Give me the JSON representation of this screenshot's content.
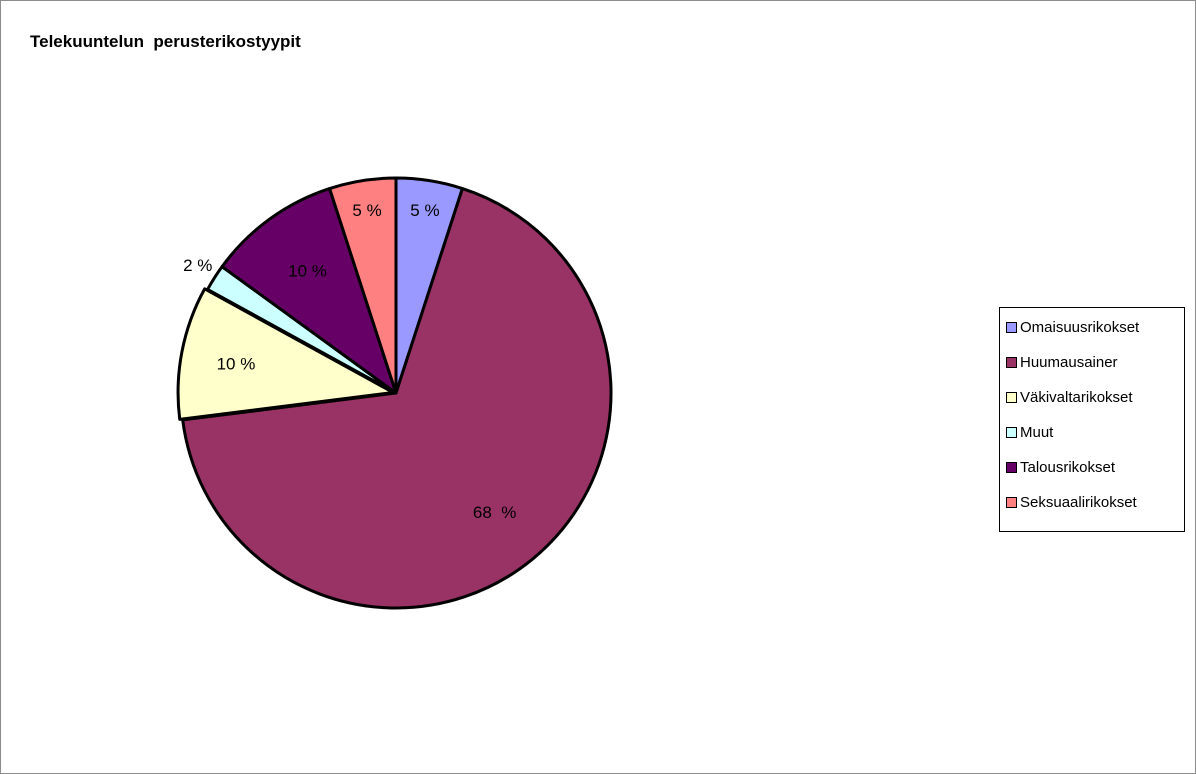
{
  "chart_data": {
    "type": "pie",
    "title": "Telekuuntelun  perusterikostyypit",
    "slices": [
      {
        "name": "Omaisuusrikokset",
        "value": 5,
        "label": "5 %",
        "color": "#9999ff"
      },
      {
        "name": "Huumausainer",
        "value": 68,
        "label": "68  %",
        "color": "#993366"
      },
      {
        "name": "Väkivaltarikokset",
        "value": 10,
        "label": "10 %",
        "color": "#ffffcc"
      },
      {
        "name": "Muut",
        "value": 2,
        "label": "2 %",
        "color": "#ccffff"
      },
      {
        "name": "Talousrikokset",
        "value": 10,
        "label": "10 %",
        "color": "#660066"
      },
      {
        "name": "Seksuaalirikokset",
        "value": 5,
        "label": "5 %",
        "color": "#ff8080"
      }
    ],
    "legend_position": "right"
  }
}
